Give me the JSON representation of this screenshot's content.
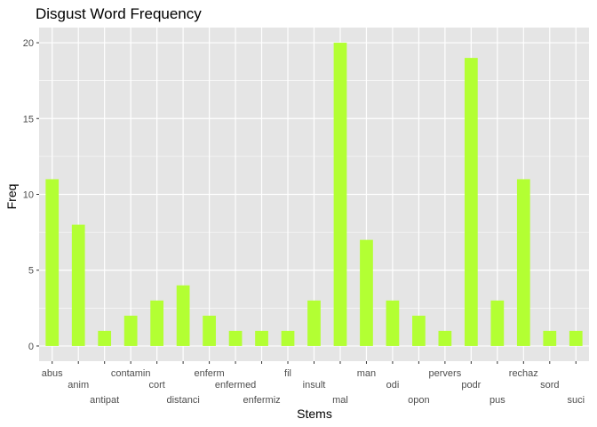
{
  "chart_data": {
    "type": "bar",
    "title": "Disgust Word Frequency",
    "xlabel": "Stems",
    "ylabel": "Freq",
    "categories": [
      "abus",
      "anim",
      "antipat",
      "contamin",
      "cort",
      "distanci",
      "enferm",
      "enfermed",
      "enfermiz",
      "fil",
      "insult",
      "mal",
      "man",
      "odi",
      "opon",
      "pervers",
      "podr",
      "pus",
      "rechaz",
      "sord",
      "suci"
    ],
    "values": [
      11,
      8,
      1,
      2,
      3,
      4,
      2,
      1,
      1,
      1,
      3,
      20,
      7,
      3,
      2,
      1,
      19,
      3,
      11,
      1,
      1
    ],
    "ylim": [
      0,
      21
    ],
    "yticks": [
      0,
      5,
      10,
      15,
      20
    ],
    "grid": true,
    "legend": "none",
    "bar_color": "#B3FF33",
    "panel_background": "#E5E5E5",
    "grid_color": "#FFFFFF"
  }
}
